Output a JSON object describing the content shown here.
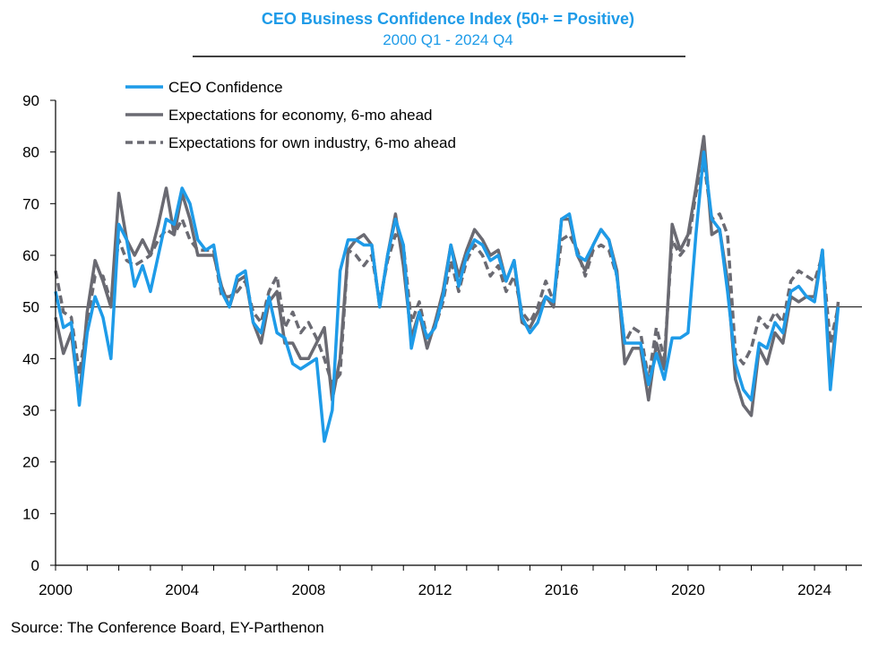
{
  "chart_data": {
    "type": "line",
    "title": "CEO Business Confidence Index (50+ = Positive)",
    "subtitle": "2000 Q1 - 2024 Q4",
    "source": "Source: The Conference Board, EY-Parthenon",
    "xlabel": "",
    "ylabel": "",
    "xlim": [
      2000,
      2025.5
    ],
    "ylim": [
      0,
      90
    ],
    "yticks": [
      0,
      10,
      20,
      30,
      40,
      50,
      60,
      70,
      80,
      90
    ],
    "xticks": [
      2000,
      2004,
      2008,
      2012,
      2016,
      2020,
      2024
    ],
    "reference_line": 50,
    "grid": false,
    "legend_position": "top-left",
    "x_start": 2000,
    "x_step": 0.25,
    "series": [
      {
        "name": "CEO Confidence",
        "color": "#1e9be8",
        "style": "solid",
        "values": [
          53,
          46,
          47,
          31,
          45,
          52,
          48,
          40,
          66,
          63,
          54,
          58,
          53,
          60,
          67,
          66,
          73,
          70,
          63,
          61,
          62,
          53,
          50,
          56,
          57,
          47,
          45,
          52,
          45,
          44,
          39,
          38,
          39,
          40,
          24,
          30,
          57,
          63,
          63,
          62,
          62,
          50,
          60,
          67,
          62,
          42,
          49,
          44,
          46,
          52,
          62,
          54,
          60,
          63,
          62,
          59,
          60,
          55,
          59,
          48,
          45,
          47,
          52,
          51,
          67,
          68,
          60,
          59,
          62,
          65,
          63,
          56,
          43,
          43,
          43,
          35,
          41,
          36,
          44,
          44,
          45,
          64,
          80,
          67,
          65,
          53,
          39,
          34,
          32,
          43,
          42,
          47,
          45,
          53,
          54,
          52,
          51,
          61,
          34,
          50
        ]
      },
      {
        "name": "Expectations for economy, 6-mo ahead",
        "color": "#6a6a72",
        "style": "solid",
        "values": [
          48,
          41,
          45,
          32,
          49,
          59,
          55,
          50,
          72,
          63,
          60,
          63,
          60,
          66,
          73,
          64,
          72,
          67,
          60,
          60,
          60,
          54,
          50,
          55,
          56,
          47,
          43,
          51,
          53,
          43,
          43,
          40,
          40,
          43,
          46,
          32,
          40,
          61,
          63,
          64,
          62,
          50,
          60,
          68,
          58,
          44,
          49,
          42,
          47,
          53,
          62,
          56,
          61,
          65,
          63,
          60,
          61,
          55,
          59,
          47,
          46,
          49,
          52,
          50,
          67,
          67,
          60,
          57,
          62,
          65,
          63,
          57,
          39,
          42,
          42,
          32,
          43,
          38,
          66,
          61,
          64,
          73,
          83,
          64,
          65,
          55,
          36,
          31,
          29,
          42,
          39,
          45,
          43,
          52,
          51,
          52,
          52,
          61,
          36,
          51
        ]
      },
      {
        "name": "Expectations for own industry, 6-mo ahead",
        "color": "#6a6a72",
        "style": "dashed",
        "values": [
          57,
          49,
          48,
          37,
          47,
          56,
          56,
          51,
          63,
          59,
          58,
          59,
          60,
          63,
          65,
          64,
          67,
          63,
          61,
          61,
          61,
          52,
          52,
          53,
          55,
          49,
          47,
          53,
          56,
          46,
          49,
          45,
          47,
          44,
          40,
          35,
          37,
          61,
          60,
          58,
          60,
          51,
          59,
          64,
          62,
          47,
          51,
          44,
          46,
          51,
          59,
          53,
          59,
          62,
          60,
          56,
          58,
          53,
          56,
          49,
          47,
          50,
          55,
          51,
          63,
          64,
          61,
          56,
          61,
          62,
          61,
          56,
          43,
          46,
          45,
          36,
          46,
          40,
          63,
          60,
          62,
          72,
          78,
          67,
          68,
          64,
          41,
          39,
          42,
          48,
          46,
          49,
          47,
          55,
          57,
          56,
          55,
          60,
          43,
          50
        ]
      }
    ]
  }
}
